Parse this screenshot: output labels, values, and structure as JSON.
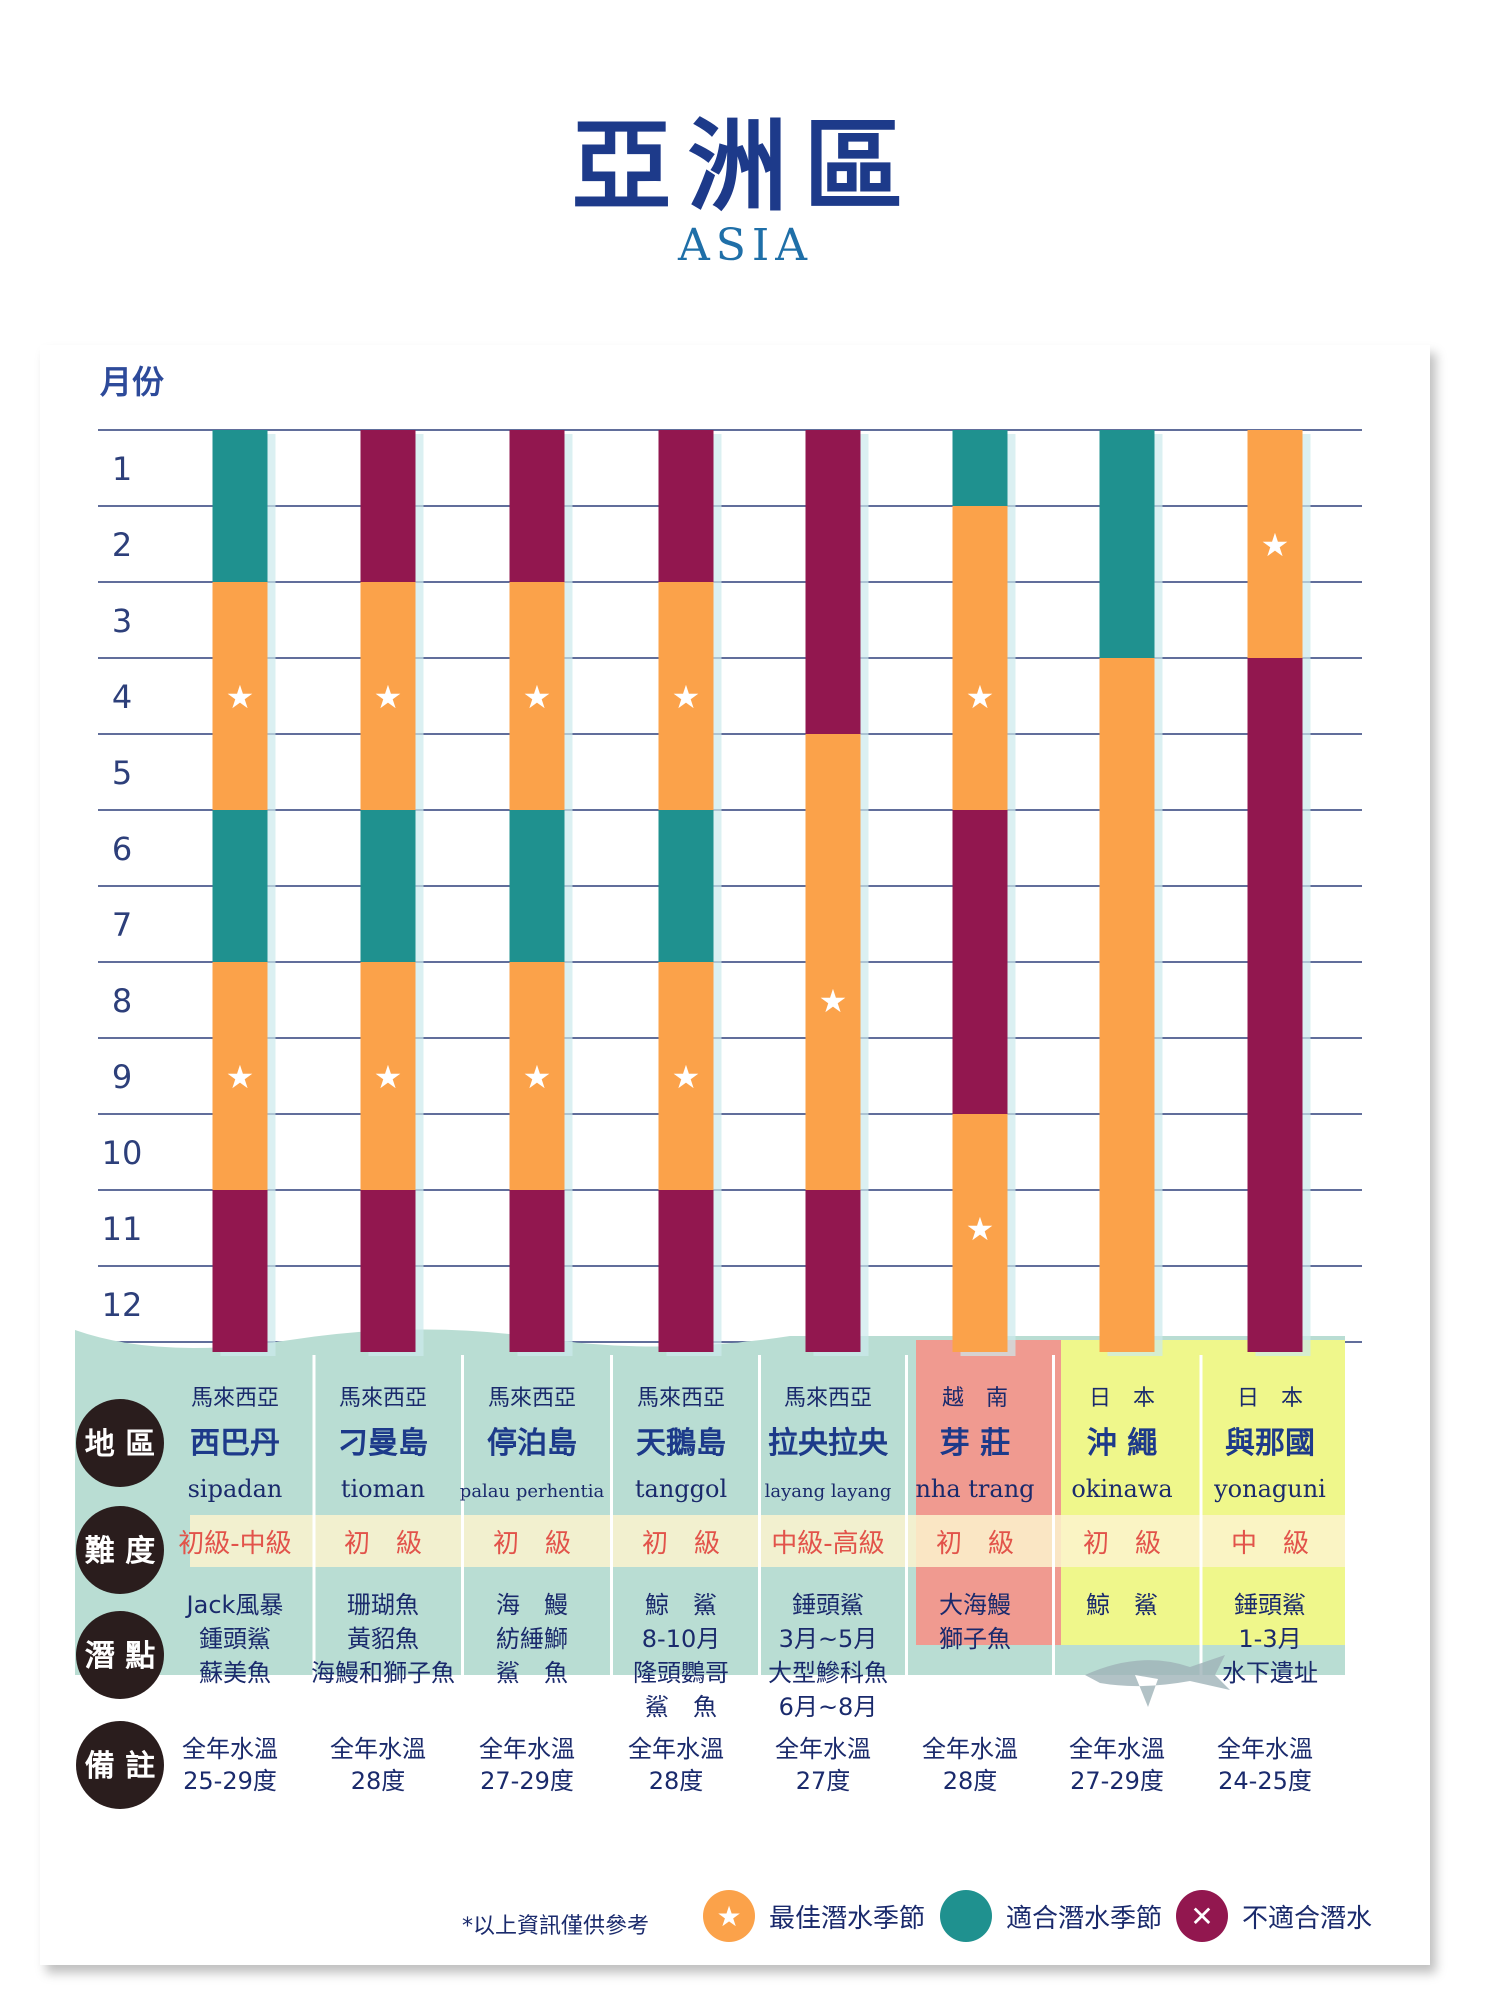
{
  "title": "亞洲區",
  "subtitle": "ASIA",
  "chart_data": {
    "type": "table",
    "axis_label": "月份",
    "months": [
      "1",
      "2",
      "3",
      "4",
      "5",
      "6",
      "7",
      "8",
      "9",
      "10",
      "11",
      "12"
    ],
    "status_colors": {
      "best": "#fba24a",
      "good": "#1f918f",
      "bad": "#92174f"
    },
    "sites": [
      {
        "country": "馬來西亞",
        "name": "西巴丹",
        "en": "sipadan",
        "level": "初級-中級",
        "species": [
          "Jack風暴",
          "鍾頭鯊",
          "蘇美魚"
        ],
        "note": [
          "全年水溫",
          "25-29度"
        ],
        "segments": [
          {
            "from": 1,
            "to": 2,
            "status": "good"
          },
          {
            "from": 3,
            "to": 5,
            "status": "best",
            "stars": [
              4
            ]
          },
          {
            "from": 6,
            "to": 7,
            "status": "good"
          },
          {
            "from": 8,
            "to": 10,
            "status": "best",
            "stars": [
              9
            ]
          },
          {
            "from": 11,
            "to": 12,
            "status": "bad"
          }
        ]
      },
      {
        "country": "馬來西亞",
        "name": "刁曼島",
        "en": "tioman",
        "level": "初　級",
        "species": [
          "珊瑚魚",
          "黃貂魚",
          "海鰻和獅子魚"
        ],
        "note": [
          "全年水溫",
          "28度"
        ],
        "segments": [
          {
            "from": 1,
            "to": 2,
            "status": "bad"
          },
          {
            "from": 3,
            "to": 5,
            "status": "best",
            "stars": [
              4
            ]
          },
          {
            "from": 6,
            "to": 7,
            "status": "good"
          },
          {
            "from": 8,
            "to": 10,
            "status": "best",
            "stars": [
              9
            ]
          },
          {
            "from": 11,
            "to": 12,
            "status": "bad"
          }
        ]
      },
      {
        "country": "馬來西亞",
        "name": "停泊島",
        "en": "palau perhentia",
        "level": "初　級",
        "species": [
          "海　鰻",
          "紡綞鰤",
          "鯊　魚"
        ],
        "note": [
          "全年水溫",
          "27-29度"
        ],
        "segments": [
          {
            "from": 1,
            "to": 2,
            "status": "bad"
          },
          {
            "from": 3,
            "to": 5,
            "status": "best",
            "stars": [
              4
            ]
          },
          {
            "from": 6,
            "to": 7,
            "status": "good"
          },
          {
            "from": 8,
            "to": 10,
            "status": "best",
            "stars": [
              9
            ]
          },
          {
            "from": 11,
            "to": 12,
            "status": "bad"
          }
        ]
      },
      {
        "country": "馬來西亞",
        "name": "天鵝島",
        "en": "tanggol",
        "level": "初　級",
        "species": [
          "鯨　鯊",
          "8-10月",
          "隆頭鸚哥",
          "鯊　魚"
        ],
        "note": [
          "全年水溫",
          "28度"
        ],
        "segments": [
          {
            "from": 1,
            "to": 2,
            "status": "bad"
          },
          {
            "from": 3,
            "to": 5,
            "status": "best",
            "stars": [
              4
            ]
          },
          {
            "from": 6,
            "to": 7,
            "status": "good"
          },
          {
            "from": 8,
            "to": 10,
            "status": "best",
            "stars": [
              9
            ]
          },
          {
            "from": 11,
            "to": 12,
            "status": "bad"
          }
        ]
      },
      {
        "country": "馬來西亞",
        "name": "拉央拉央",
        "en": "layang layang",
        "level": "中級-高級",
        "species": [
          "錘頭鯊",
          "3月~5月",
          "大型鰺科魚",
          "6月~8月"
        ],
        "note": [
          "全年水溫",
          "27度"
        ],
        "segments": [
          {
            "from": 1,
            "to": 4,
            "status": "bad"
          },
          {
            "from": 5,
            "to": 10,
            "status": "best",
            "stars": [
              8
            ]
          },
          {
            "from": 11,
            "to": 12,
            "status": "bad"
          }
        ]
      },
      {
        "country": "越　南",
        "name": "芽 莊",
        "en": "nha trang",
        "level": "初　級",
        "species": [
          "大海鰻",
          "獅子魚"
        ],
        "note": [
          "全年水溫",
          "28度"
        ],
        "segments": [
          {
            "from": 1,
            "to": 1,
            "status": "good"
          },
          {
            "from": 2,
            "to": 5,
            "status": "best",
            "stars": [
              4
            ]
          },
          {
            "from": 6,
            "to": 9,
            "status": "bad"
          },
          {
            "from": 10,
            "to": 12,
            "status": "best",
            "stars": [
              11
            ]
          }
        ]
      },
      {
        "country": "日　本",
        "name": "沖 繩",
        "en": "okinawa",
        "level": "初　級",
        "species": [
          "鯨　鯊"
        ],
        "note": [
          "全年水溫",
          "27-29度"
        ],
        "segments": [
          {
            "from": 1,
            "to": 3,
            "status": "good"
          },
          {
            "from": 4,
            "to": 12,
            "status": "best",
            "stars": []
          }
        ]
      },
      {
        "country": "日　本",
        "name": "與那國",
        "en": "yonaguni",
        "level": "中　級",
        "species": [
          "錘頭鯊",
          "1-3月",
          "水下遺址"
        ],
        "note": [
          "全年水溫",
          "24-25度"
        ],
        "segments": [
          {
            "from": 1,
            "to": 3,
            "status": "best",
            "stars": [
              2
            ]
          },
          {
            "from": 4,
            "to": 12,
            "status": "bad"
          }
        ]
      }
    ],
    "row_labels": {
      "region": "地 區",
      "level": "難 度",
      "spot": "潛 點",
      "note": "備 註"
    }
  },
  "footnote": "*以上資訊僅供參考",
  "legend": [
    {
      "label": "最佳潛水季節",
      "color": "#fba24a",
      "symbol": "★"
    },
    {
      "label": "適合潛水季節",
      "color": "#1f918f",
      "symbol": ""
    },
    {
      "label": "不適合潛水",
      "color": "#92174f",
      "symbol": "✕"
    }
  ]
}
